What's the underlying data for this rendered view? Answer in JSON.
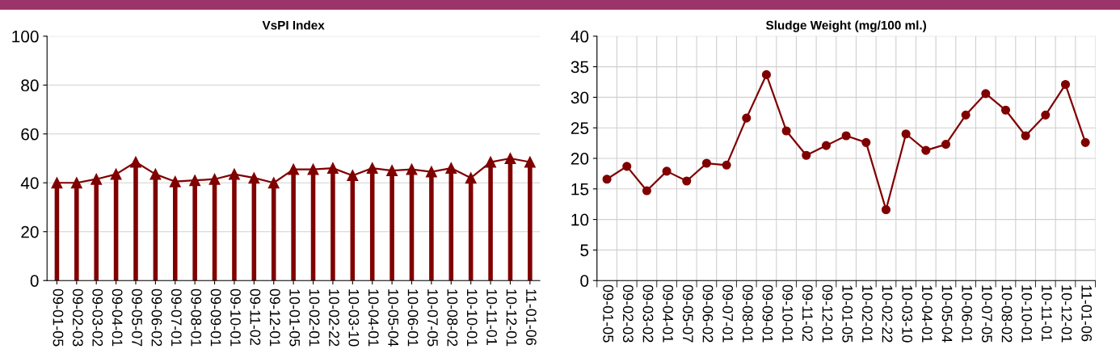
{
  "chart_data": [
    {
      "type": "bar",
      "title": "VsPI Index",
      "categories": [
        "09-01-05",
        "09-02-03",
        "09-03-02",
        "09-04-01",
        "09-05-07",
        "09-06-02",
        "09-07-01",
        "09-08-01",
        "09-09-01",
        "09-10-01",
        "09-11-02",
        "09-12-01",
        "10-01-05",
        "10-02-01",
        "10-02-22",
        "10-03-10",
        "10-04-01",
        "10-05-04",
        "10-06-01",
        "10-07-05",
        "10-08-02",
        "10-10-01",
        "10-11-01",
        "10-12-01",
        "11-01-06"
      ],
      "series": [
        {
          "type": "lollipop",
          "color": "#800000",
          "marker": "triangle",
          "values": [
            40,
            40,
            41.5,
            43.5,
            48.5,
            43.5,
            40.5,
            41,
            41.5,
            43.5,
            42,
            40,
            45.5,
            45.5,
            46,
            43,
            46,
            45,
            45.5,
            44.5,
            46,
            42,
            48.5,
            50,
            48.5
          ]
        },
        {
          "type": "line",
          "color": "#800000",
          "values": [
            40,
            40,
            41.5,
            43.5,
            48.5,
            43.5,
            40.5,
            41,
            41.5,
            43.5,
            42,
            40,
            45.5,
            45.5,
            46,
            43,
            46,
            45,
            45.5,
            44.5,
            46,
            42,
            48.5,
            50,
            48.5
          ]
        }
      ],
      "ylim": [
        0,
        100
      ],
      "yticks": [
        0,
        20,
        40,
        60,
        80,
        100
      ],
      "grid": "y"
    },
    {
      "type": "line",
      "title": "Sludge Weight (mg/100 ml.)",
      "categories": [
        "09-01-05",
        "09-02-03",
        "09-03-02",
        "09-04-01",
        "09-05-07",
        "09-06-02",
        "09-07-01",
        "09-08-01",
        "09-09-01",
        "09-10-01",
        "09-11-02",
        "09-12-01",
        "10-01-05",
        "10-02-01",
        "10-02-22",
        "10-03-10",
        "10-04-01",
        "10-05-04",
        "10-06-01",
        "10-07-05",
        "10-08-02",
        "10-10-01",
        "10-11-01",
        "10-12-01",
        "11-01-06"
      ],
      "series": [
        {
          "color": "#800000",
          "values": [
            16.6,
            18.7,
            14.7,
            17.9,
            16.3,
            19.2,
            18.9,
            26.6,
            33.7,
            24.5,
            20.5,
            22.1,
            23.7,
            22.6,
            11.6,
            24,
            21.3,
            22.3,
            27.1,
            30.6,
            27.9,
            23.7,
            27.1,
            32.1,
            22.6
          ]
        }
      ],
      "marker": "circle",
      "ylim": [
        0,
        40
      ],
      "yticks": [
        0,
        5,
        10,
        15,
        20,
        25,
        30,
        35,
        40
      ],
      "grid": true
    }
  ]
}
